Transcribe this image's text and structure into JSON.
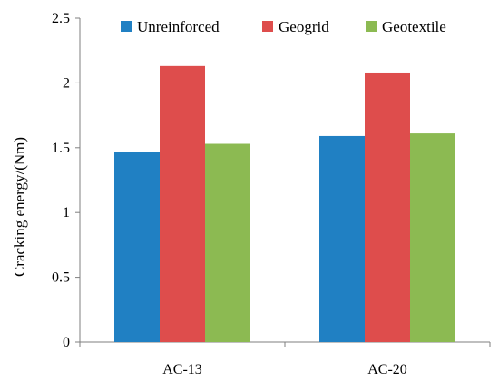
{
  "chart_data": {
    "type": "bar",
    "title": "",
    "xlabel": "",
    "ylabel": "Cracking energy/(Nm)",
    "categories": [
      "AC-13",
      "AC-20"
    ],
    "series": [
      {
        "name": "Unreinforced",
        "values": [
          1.47,
          1.59
        ],
        "color": "#2080c3"
      },
      {
        "name": "Geogrid",
        "values": [
          2.13,
          2.08
        ],
        "color": "#de4d4c"
      },
      {
        "name": "Geotextile",
        "values": [
          1.53,
          1.61
        ],
        "color": "#8cba52"
      }
    ],
    "ylim": [
      0,
      2.5
    ],
    "yticks": [
      "0",
      "0.5",
      "1",
      "1.5",
      "2",
      "2.5"
    ],
    "grid": false,
    "legend_position": "top"
  }
}
